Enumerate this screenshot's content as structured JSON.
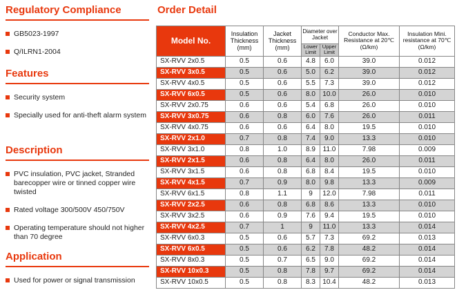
{
  "colors": {
    "accent": "#e8380d",
    "row_highlight_gray": "#d4d4d4",
    "subheader_gray": "#c9c9c9"
  },
  "left": {
    "sections": [
      {
        "title": "Regulatory Compliance",
        "items": [
          "GB5023-1997",
          "Q/ILRN1-2004"
        ]
      },
      {
        "title": "Features",
        "items": [
          "Security system",
          "Specially used for anti-theft alarm system"
        ]
      },
      {
        "title": "Description",
        "items": [
          "PVC insulation, PVC jacket, Stranded barecopper wire or tinned copper wire twisted",
          "Rated voltage 300/500V  450/750V",
          "Operating temperature should not higher than 70 degree"
        ]
      },
      {
        "title": "Application",
        "items": [
          "Used for power or signal transmission"
        ]
      }
    ]
  },
  "order_detail": {
    "title": "Order Detail",
    "table": {
      "headers": {
        "model": "Model No.",
        "insulation_thickness": "Insulation Thickness (mm)",
        "jacket_thickness": "Jacket Thickness (mm)",
        "diameter_over_jacket": "Diameter over Jacket",
        "lower_limit": "Lower Limit",
        "upper_limit": "Upper Limit",
        "conductor_resistance": "Conductor Max. Resistance at 20℃ (Ω/km)",
        "insulation_resistance": "Insulation Mini. resistance at 70℃ (Ω/km)"
      },
      "rows": [
        {
          "model": "SX-RVV 2x0.5",
          "values": [
            "0.5",
            "0.6",
            "4.8",
            "6.0",
            "39.0",
            "0.012"
          ],
          "highlight": false
        },
        {
          "model": "SX-RVV 3x0.5",
          "values": [
            "0.5",
            "0.6",
            "5.0",
            "6.2",
            "39.0",
            "0.012"
          ],
          "highlight": true
        },
        {
          "model": "SX-RVV 4x0.5",
          "values": [
            "0.5",
            "0.6",
            "5.5",
            "7.3",
            "39.0",
            "0.012"
          ],
          "highlight": false
        },
        {
          "model": "SX-RVV 6x0.5",
          "values": [
            "0.5",
            "0.6",
            "8.0",
            "10.0",
            "26.0",
            "0.010"
          ],
          "highlight": true
        },
        {
          "model": "SX-RVV 2x0.75",
          "values": [
            "0.6",
            "0.6",
            "5.4",
            "6.8",
            "26.0",
            "0.010"
          ],
          "highlight": false
        },
        {
          "model": "SX-RVV 3x0.75",
          "values": [
            "0.6",
            "0.8",
            "6.0",
            "7.6",
            "26.0",
            "0.011"
          ],
          "highlight": true
        },
        {
          "model": "SX-RVV 4x0.75",
          "values": [
            "0.6",
            "0.6",
            "6.4",
            "8.0",
            "19.5",
            "0.010"
          ],
          "highlight": false
        },
        {
          "model": "SX-RVV 2x1.0",
          "values": [
            "0.7",
            "0.8",
            "7.4",
            "9.0",
            "13.3",
            "0.010"
          ],
          "highlight": true
        },
        {
          "model": "SX-RVV 3x1.0",
          "values": [
            "0.8",
            "1.0",
            "8.9",
            "11.0",
            "7.98",
            "0.009"
          ],
          "highlight": false
        },
        {
          "model": "SX-RVV 2x1.5",
          "values": [
            "0.6",
            "0.8",
            "6.4",
            "8.0",
            "26.0",
            "0.011"
          ],
          "highlight": true
        },
        {
          "model": "SX-RVV 3x1.5",
          "values": [
            "0.6",
            "0.8",
            "6.8",
            "8.4",
            "19.5",
            "0.010"
          ],
          "highlight": false
        },
        {
          "model": "SX-RVV 4x1.5",
          "values": [
            "0.7",
            "0.9",
            "8.0",
            "9.8",
            "13.3",
            "0.009"
          ],
          "highlight": true
        },
        {
          "model": "SX-RVV 6x1.5",
          "values": [
            "0.8",
            "1.1",
            "9",
            "12.0",
            "7.98",
            "0.011"
          ],
          "highlight": false
        },
        {
          "model": "SX-RVV 2x2.5",
          "values": [
            "0.6",
            "0.8",
            "6.8",
            "8.6",
            "13.3",
            "0.010"
          ],
          "highlight": true
        },
        {
          "model": "SX-RVV 3x2.5",
          "values": [
            "0.6",
            "0.9",
            "7.6",
            "9.4",
            "19.5",
            "0.010"
          ],
          "highlight": false
        },
        {
          "model": "SX-RVV 4x2.5",
          "values": [
            "0.7",
            "1",
            "9",
            "11.0",
            "13.3",
            "0.014"
          ],
          "highlight": true
        },
        {
          "model": "SX-RVV 6x0.3",
          "values": [
            "0.5",
            "0.6",
            "5.7",
            "7.3",
            "69.2",
            "0.013"
          ],
          "highlight": false
        },
        {
          "model": "SX-RVV 6x0.5",
          "values": [
            "0.5",
            "0.6",
            "6.2",
            "7.8",
            "48.2",
            "0.014"
          ],
          "highlight": true
        },
        {
          "model": "SX-RVV 8x0.3",
          "values": [
            "0.5",
            "0.7",
            "6.5",
            "9.0",
            "69.2",
            "0.014"
          ],
          "highlight": false
        },
        {
          "model": "SX-RVV 10x0.3",
          "values": [
            "0.5",
            "0.8",
            "7.8",
            "9.7",
            "69.2",
            "0.014"
          ],
          "highlight": true
        },
        {
          "model": "SX-RVV 10x0.5",
          "values": [
            "0.5",
            "0.8",
            "8.3",
            "10.4",
            "48.2",
            "0.013"
          ],
          "highlight": false
        }
      ]
    }
  }
}
